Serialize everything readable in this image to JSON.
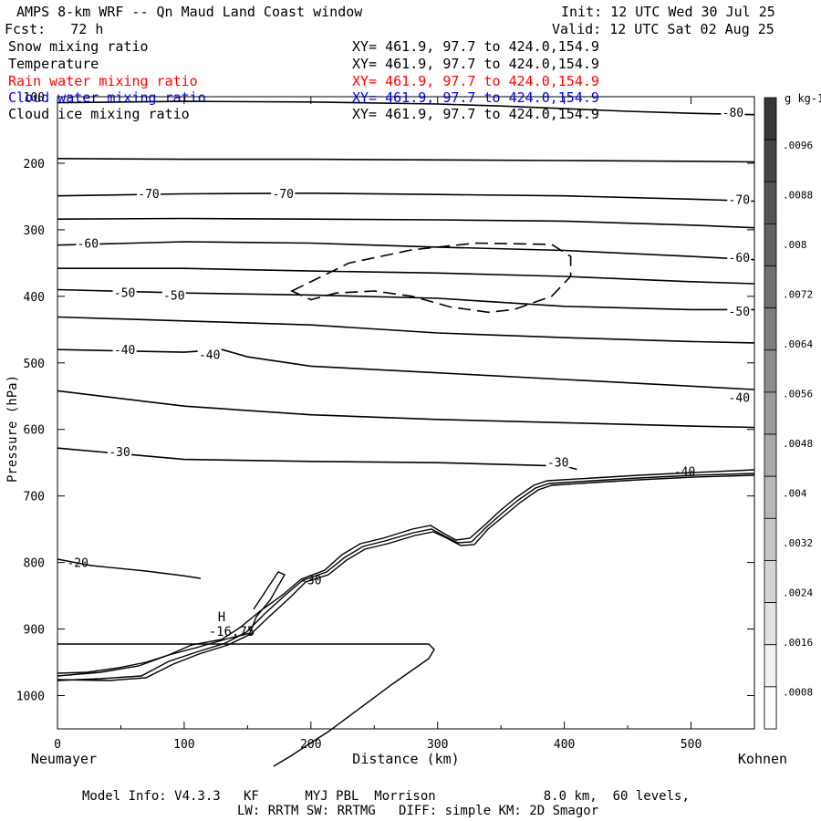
{
  "header": {
    "title": "AMPS 8-km WRF -- Qn Maud Land Coast window",
    "init": "Init: 12 UTC Wed 30 Jul 25",
    "forecast": "Fcst:   72 h",
    "valid": "Valid: 12 UTC Sat 02 Aug 25"
  },
  "fields": [
    {
      "name": "Snow mixing ratio",
      "xy": "XY= 461.9, 97.7 to 424.0,154.9",
      "color": "#000000"
    },
    {
      "name": "Temperature",
      "xy": "XY= 461.9, 97.7 to 424.0,154.9",
      "color": "#000000"
    },
    {
      "name": "Rain water mixing ratio",
      "xy": "XY= 461.9, 97.7 to 424.0,154.9",
      "color": "#ff0000"
    },
    {
      "name": "Cloud water mixing ratio",
      "xy": "XY= 461.9, 97.7 to 424.0,154.9",
      "color": "#0000ff"
    },
    {
      "name": "Cloud ice mixing ratio",
      "xy": "XY= 461.9, 97.7 to 424.0,154.9",
      "color": "#000000"
    }
  ],
  "chart_data": {
    "type": "line",
    "xlabel": "Distance (km)",
    "ylabel": "Pressure (hPa)",
    "xlim": [
      0,
      550
    ],
    "ylim": [
      1050,
      100
    ],
    "x_ticks": [
      0,
      100,
      200,
      300,
      400,
      500
    ],
    "y_ticks": [
      100,
      200,
      300,
      400,
      500,
      600,
      700,
      800,
      900,
      1000
    ],
    "x_start_label": "Neumayer",
    "x_end_label": "Kohnen",
    "grid": false,
    "isotherms": [
      {
        "level": -80,
        "x": [
          0,
          100,
          200,
          300,
          350,
          400,
          450,
          500,
          550
        ],
        "y": [
          109,
          107,
          108,
          111,
          114,
          118,
          122,
          125,
          127
        ]
      },
      {
        "level": -75,
        "x": [
          0,
          100,
          200,
          300,
          400,
          500,
          550
        ],
        "y": [
          193,
          194,
          194,
          195,
          196,
          197,
          198
        ]
      },
      {
        "level": -70,
        "x": [
          0,
          100,
          200,
          300,
          400,
          500,
          550
        ],
        "y": [
          249,
          246,
          245,
          247,
          249,
          254,
          257
        ]
      },
      {
        "level": -65,
        "x": [
          0,
          100,
          200,
          300,
          400,
          500,
          550
        ],
        "y": [
          284,
          283,
          284,
          285,
          287,
          293,
          297
        ]
      },
      {
        "level": -60,
        "x": [
          0,
          100,
          200,
          300,
          400,
          500,
          550
        ],
        "y": [
          323,
          318,
          320,
          326,
          331,
          340,
          345
        ]
      },
      {
        "level": -55,
        "x": [
          0,
          100,
          200,
          300,
          400,
          500,
          550
        ],
        "y": [
          358,
          358,
          362,
          365,
          370,
          378,
          381
        ]
      },
      {
        "level": -50,
        "x": [
          0,
          100,
          200,
          300,
          400,
          500,
          550
        ],
        "y": [
          390,
          395,
          398,
          403,
          415,
          420,
          420
        ]
      },
      {
        "level": -45,
        "x": [
          0,
          100,
          200,
          300,
          400,
          500,
          550
        ],
        "y": [
          431,
          437,
          443,
          455,
          462,
          468,
          470
        ]
      },
      {
        "level": -40,
        "x": [
          0,
          100,
          130,
          150,
          200,
          300,
          400,
          500,
          550
        ],
        "y": [
          480,
          484,
          480,
          491,
          505,
          515,
          525,
          535,
          540
        ]
      },
      {
        "level": -35,
        "x": [
          0,
          100,
          200,
          300,
          400,
          500,
          550
        ],
        "y": [
          542,
          565,
          578,
          585,
          590,
          595,
          597
        ]
      },
      {
        "level": -30,
        "x": [
          0,
          100,
          200,
          300,
          400,
          410
        ],
        "y": [
          628,
          645,
          648,
          650,
          655,
          660
        ]
      }
    ],
    "contour_labels": [
      {
        "text": "-80",
        "x": 533,
        "y": 123
      },
      {
        "text": "-70",
        "x": 72,
        "y": 245
      },
      {
        "text": "-70",
        "x": 178,
        "y": 245
      },
      {
        "text": "-70",
        "x": 538,
        "y": 254
      },
      {
        "text": "-60",
        "x": 24,
        "y": 320
      },
      {
        "text": "-60",
        "x": 538,
        "y": 341
      },
      {
        "text": "-50",
        "x": 53,
        "y": 394
      },
      {
        "text": "-50",
        "x": 92,
        "y": 398
      },
      {
        "text": "-50",
        "x": 538,
        "y": 422
      },
      {
        "text": "-40",
        "x": 53,
        "y": 480
      },
      {
        "text": "-40",
        "x": 120,
        "y": 487
      },
      {
        "text": "-40",
        "x": 538,
        "y": 552
      },
      {
        "text": "-30",
        "x": 49,
        "y": 633
      },
      {
        "text": "-30",
        "x": 395,
        "y": 649
      },
      {
        "text": "-40",
        "x": 495,
        "y": 663
      },
      {
        "text": "-20",
        "x": 16,
        "y": 800
      },
      {
        "text": "-30",
        "x": 200,
        "y": 826
      }
    ],
    "extremum": {
      "marker": "H",
      "value": "-16.75",
      "x": 128,
      "y": 905
    },
    "snow_contour": {
      "level": 0.0008,
      "x": [
        185,
        230,
        280,
        330,
        390,
        405,
        405,
        390,
        360,
        340,
        310,
        280,
        250,
        220,
        200,
        185
      ],
      "y": [
        392,
        350,
        330,
        320,
        322,
        340,
        370,
        400,
        420,
        424,
        416,
        400,
        392,
        395,
        405,
        392
      ]
    },
    "colorbar": {
      "unit": "g kg-1",
      "labels": [
        ".0096",
        ".0088",
        ".008",
        ".0072",
        ".0064",
        ".0056",
        ".0048",
        ".004",
        ".0032",
        ".0024",
        ".0016",
        ".0008"
      ]
    }
  },
  "footer": {
    "line1": "Model Info: V4.3.3   KF      MYJ PBL  Morrison              8.0 km,  60 levels,",
    "line2": "LW: RRTM SW: RRTMG   DIFF: simple KM: 2D Smagor"
  }
}
